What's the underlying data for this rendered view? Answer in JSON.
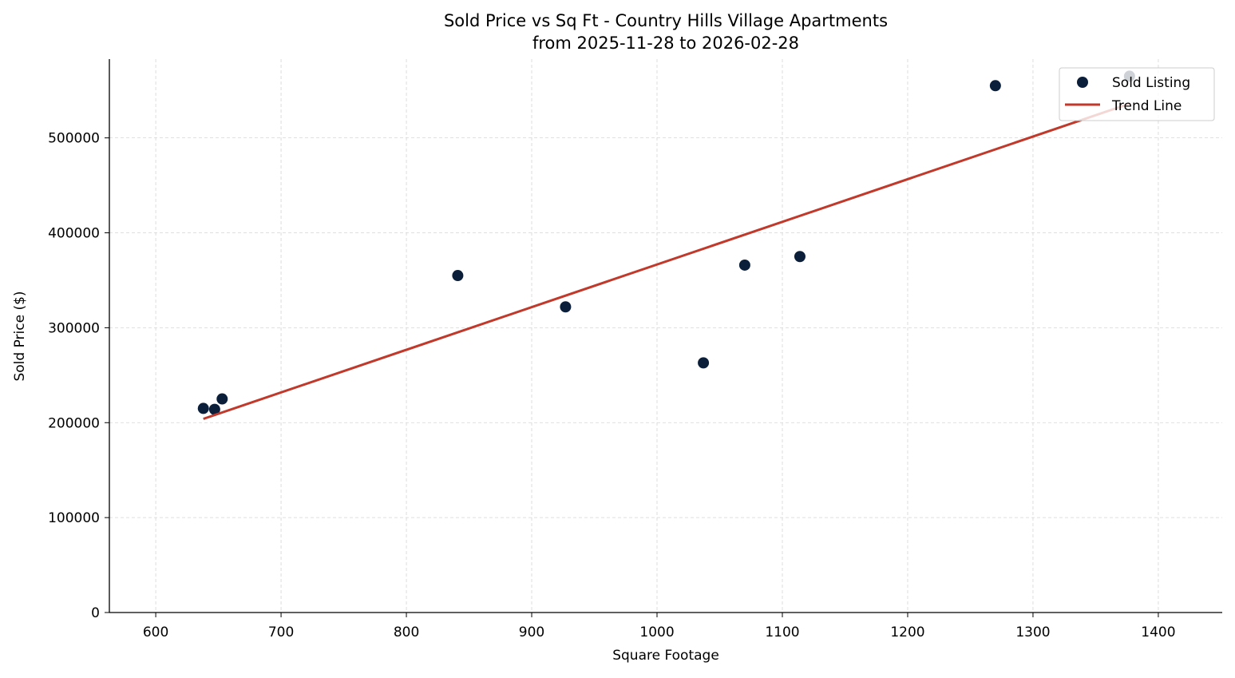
{
  "chart_data": {
    "type": "scatter",
    "title": "Sold Price vs Sq Ft - Country Hills Village Apartments",
    "subtitle": "from 2025-11-28 to 2026-02-28",
    "xlabel": "Square Footage",
    "ylabel": "Sold Price ($)",
    "xlim": [
      563,
      1451
    ],
    "ylim": [
      0,
      583000
    ],
    "xticks": [
      600,
      700,
      800,
      900,
      1000,
      1100,
      1200,
      1300,
      1400
    ],
    "yticks": [
      0,
      100000,
      200000,
      300000,
      400000,
      500000
    ],
    "grid": true,
    "legend_position": "top-right",
    "series": [
      {
        "name": "Sold Listing",
        "kind": "scatter",
        "color": "#0b1f3a",
        "points": [
          {
            "x": 638,
            "y": 215000
          },
          {
            "x": 647,
            "y": 214000
          },
          {
            "x": 653,
            "y": 225000
          },
          {
            "x": 841,
            "y": 355000
          },
          {
            "x": 927,
            "y": 322000
          },
          {
            "x": 1037,
            "y": 263000
          },
          {
            "x": 1070,
            "y": 366000
          },
          {
            "x": 1114,
            "y": 375000
          },
          {
            "x": 1270,
            "y": 555000
          },
          {
            "x": 1377,
            "y": 565000
          }
        ]
      },
      {
        "name": "Trend Line",
        "kind": "line",
        "color": "#c0392b",
        "points": [
          {
            "x": 638,
            "y": 204000
          },
          {
            "x": 1377,
            "y": 536000
          }
        ]
      }
    ]
  }
}
